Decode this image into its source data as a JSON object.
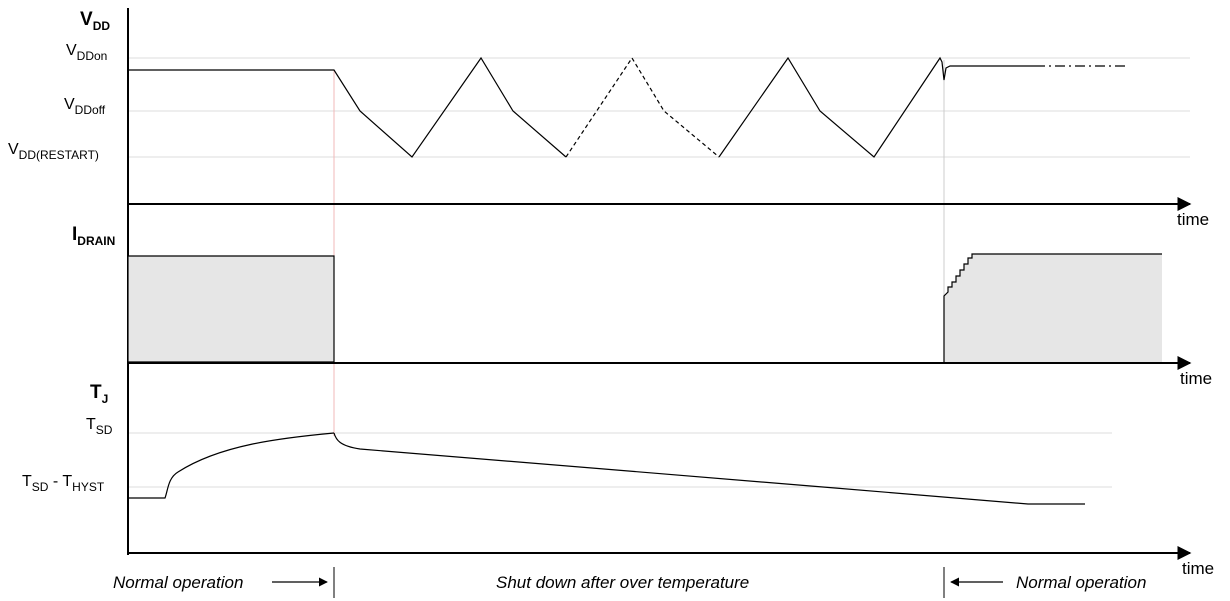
{
  "panels": {
    "vdd": {
      "title": {
        "main": "V",
        "sub": "DD"
      },
      "levels": [
        {
          "main": "V",
          "sub": "DDon"
        },
        {
          "main": "V",
          "sub": "DDoff"
        },
        {
          "main": "V",
          "sub": "DD(RESTART)"
        }
      ],
      "x_axis_label": "time"
    },
    "idrain": {
      "title": {
        "main": "I",
        "sub": "DRAIN"
      },
      "x_axis_label": "time"
    },
    "tj": {
      "title": {
        "main": "T",
        "sub": "J"
      },
      "levels": [
        {
          "main": "T",
          "sub": "SD"
        },
        {
          "main": "T",
          "sub": "SD",
          "mid": " - T",
          "sub2": "HYST"
        }
      ],
      "x_axis_label": "time"
    }
  },
  "phases": [
    {
      "label": "Normal operation"
    },
    {
      "label": "Shut down after over temperature"
    },
    {
      "label": "Normal operation"
    }
  ],
  "colors": {
    "trace": "#000000",
    "fill": "#e6e6e6",
    "gridline": "#dddddd",
    "marker_left": "#f2b8b8",
    "marker_right": "#cccccc"
  }
}
